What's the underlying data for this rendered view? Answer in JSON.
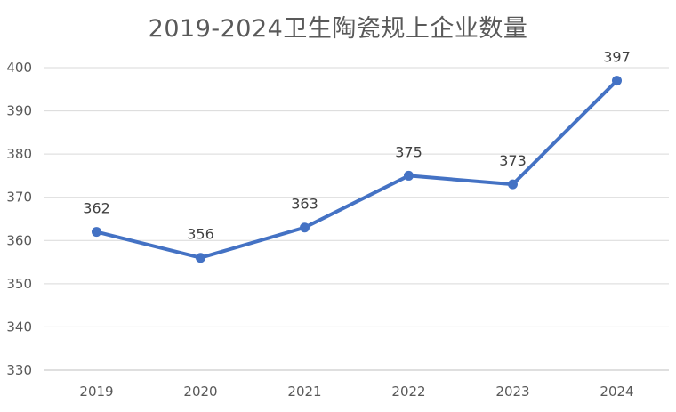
{
  "chart_data": {
    "type": "line",
    "title": "2019-2024卫生陶瓷规上企业数量",
    "xlabel": "",
    "ylabel": "",
    "categories": [
      "2019",
      "2020",
      "2021",
      "2022",
      "2023",
      "2024"
    ],
    "series": [
      {
        "values": [
          362,
          356,
          363,
          375,
          373,
          397
        ],
        "color": "#4472c4",
        "markers": "circle",
        "data_labels": [
          "362",
          "356",
          "363",
          "375",
          "373",
          "397"
        ]
      }
    ],
    "ylim": [
      330,
      400
    ],
    "yticks": [
      "330",
      "340",
      "350",
      "360",
      "370",
      "380",
      "390",
      "400"
    ],
    "grid": true,
    "legend": "none"
  }
}
